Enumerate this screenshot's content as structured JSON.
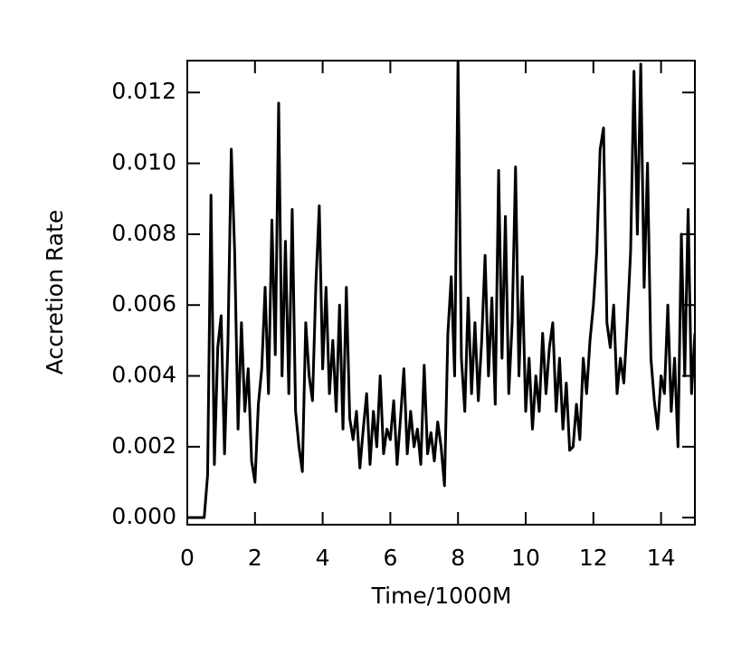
{
  "chart_data": {
    "type": "line",
    "xlabel": "Time/1000M",
    "ylabel": "Accretion Rate",
    "color": "#000000",
    "xlim": [
      0,
      15
    ],
    "ylim": [
      -0.0002,
      0.0129
    ],
    "xticks": [
      0,
      2,
      4,
      6,
      8,
      10,
      12,
      14
    ],
    "yticks": [
      {
        "value": 0,
        "label": "0.000"
      },
      {
        "value": 0.002,
        "label": "0.002"
      },
      {
        "value": 0.004,
        "label": "0.004"
      },
      {
        "value": 0.006,
        "label": "0.006"
      },
      {
        "value": 0.008,
        "label": "0.008"
      },
      {
        "value": 0.01,
        "label": "0.010"
      },
      {
        "value": 0.012,
        "label": "0.012"
      }
    ],
    "x": [
      0,
      0.1,
      0.2,
      0.3,
      0.4,
      0.5,
      0.6,
      0.7,
      0.8,
      0.9,
      1,
      1.1,
      1.2,
      1.3,
      1.4,
      1.5,
      1.6,
      1.7,
      1.8,
      1.9,
      2,
      2.1,
      2.2,
      2.3,
      2.4,
      2.5,
      2.6,
      2.7,
      2.8,
      2.9,
      3,
      3.1,
      3.2,
      3.3,
      3.4,
      3.5,
      3.6,
      3.7,
      3.8,
      3.9,
      4,
      4.1,
      4.2,
      4.3,
      4.4,
      4.5,
      4.6,
      4.7,
      4.8,
      4.9,
      5,
      5.1,
      5.2,
      5.3,
      5.4,
      5.5,
      5.6,
      5.7,
      5.8,
      5.9,
      6,
      6.1,
      6.2,
      6.3,
      6.4,
      6.5,
      6.6,
      6.7,
      6.8,
      6.9,
      7,
      7.1,
      7.2,
      7.3,
      7.4,
      7.5,
      7.6,
      7.7,
      7.8,
      7.9,
      8,
      8.1,
      8.2,
      8.3,
      8.4,
      8.5,
      8.6,
      8.7,
      8.8,
      8.9,
      9,
      9.1,
      9.2,
      9.3,
      9.4,
      9.5,
      9.6,
      9.7,
      9.8,
      9.9,
      10,
      10.1,
      10.2,
      10.3,
      10.4,
      10.5,
      10.6,
      10.7,
      10.8,
      10.9,
      11,
      11.1,
      11.2,
      11.3,
      11.4,
      11.5,
      11.6,
      11.7,
      11.8,
      11.9,
      12,
      12.1,
      12.2,
      12.3,
      12.4,
      12.5,
      12.6,
      12.7,
      12.8,
      12.9,
      13,
      13.1,
      13.2,
      13.3,
      13.4,
      13.5,
      13.6,
      13.7,
      13.8,
      13.9,
      14,
      14.1,
      14.2,
      14.3,
      14.4,
      14.5,
      14.6,
      14.7,
      14.8,
      14.9,
      15
    ],
    "values": [
      0,
      0,
      0,
      0,
      0,
      0,
      0.0012,
      0.0091,
      0.0015,
      0.0048,
      0.0057,
      0.0018,
      0.0049,
      0.0104,
      0.0075,
      0.0025,
      0.0055,
      0.003,
      0.0042,
      0.0016,
      0.001,
      0.0032,
      0.0042,
      0.0065,
      0.0035,
      0.0084,
      0.0046,
      0.0117,
      0.004,
      0.0078,
      0.0035,
      0.0087,
      0.003,
      0.002,
      0.0013,
      0.0055,
      0.004,
      0.0033,
      0.0066,
      0.0088,
      0.0042,
      0.0065,
      0.0035,
      0.005,
      0.003,
      0.006,
      0.0025,
      0.0065,
      0.0028,
      0.0022,
      0.003,
      0.0014,
      0.0025,
      0.0035,
      0.0015,
      0.003,
      0.002,
      0.004,
      0.0018,
      0.0025,
      0.0022,
      0.0033,
      0.0015,
      0.0028,
      0.0042,
      0.0018,
      0.003,
      0.002,
      0.0025,
      0.0015,
      0.0043,
      0.0018,
      0.0024,
      0.0016,
      0.0027,
      0.002,
      0.0009,
      0.0052,
      0.0068,
      0.004,
      0.0129,
      0.0045,
      0.003,
      0.0062,
      0.0035,
      0.0055,
      0.0033,
      0.005,
      0.0074,
      0.004,
      0.0062,
      0.0032,
      0.0098,
      0.0045,
      0.0085,
      0.0035,
      0.0055,
      0.0099,
      0.004,
      0.0068,
      0.003,
      0.0045,
      0.0025,
      0.004,
      0.003,
      0.0052,
      0.0035,
      0.0048,
      0.0055,
      0.003,
      0.0045,
      0.0025,
      0.0038,
      0.0019,
      0.002,
      0.0032,
      0.0022,
      0.0045,
      0.0035,
      0.005,
      0.006,
      0.0075,
      0.0104,
      0.011,
      0.0055,
      0.0048,
      0.006,
      0.0035,
      0.0045,
      0.0038,
      0.0055,
      0.0075,
      0.0126,
      0.008,
      0.0128,
      0.0065,
      0.01,
      0.0045,
      0.0033,
      0.0025,
      0.004,
      0.0035,
      0.006,
      0.003,
      0.0045,
      0.002,
      0.008,
      0.004,
      0.0087,
      0.0035,
      0.0052
    ]
  }
}
